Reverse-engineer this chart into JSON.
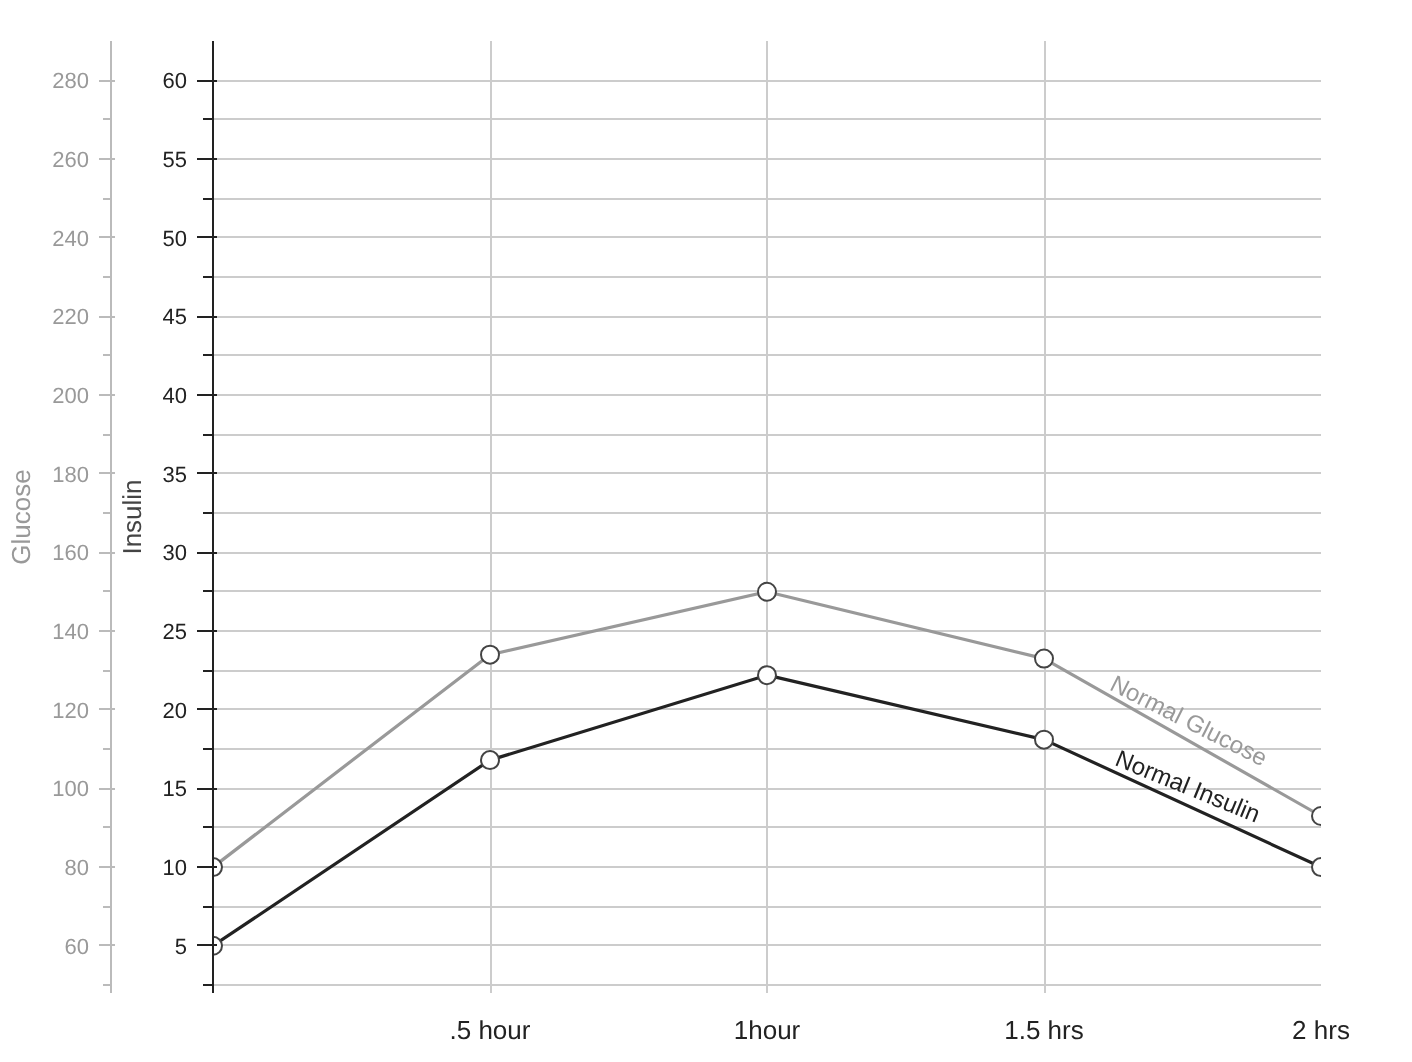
{
  "chart_data": {
    "type": "line",
    "xlabel": null,
    "ylabel": "Glucose",
    "y2label": "Insulin",
    "categories": [
      null,
      ".5 hour",
      "1hour",
      "1.5 hrs",
      "2 hrs"
    ],
    "series": [
      {
        "name": "Normal Glucose",
        "color": "#999999",
        "values": [
          80,
          134,
          150,
          133,
          93
        ]
      },
      {
        "name": "Normal Insulin",
        "color": "#222222",
        "axis": "y2",
        "values": [
          5,
          16.8,
          22.2,
          18.1,
          10
        ]
      }
    ],
    "ylim": [
      48,
      290
    ],
    "yticks": [
      60,
      80,
      100,
      120,
      140,
      160,
      180,
      200,
      220,
      240,
      260,
      280
    ],
    "y2lim": [
      2,
      62.5
    ],
    "y2ticks": [
      5,
      10,
      15,
      20,
      25,
      30,
      35,
      40,
      45,
      50,
      55,
      60
    ],
    "grid": true,
    "marker": "circle",
    "line_style": "solid"
  }
}
